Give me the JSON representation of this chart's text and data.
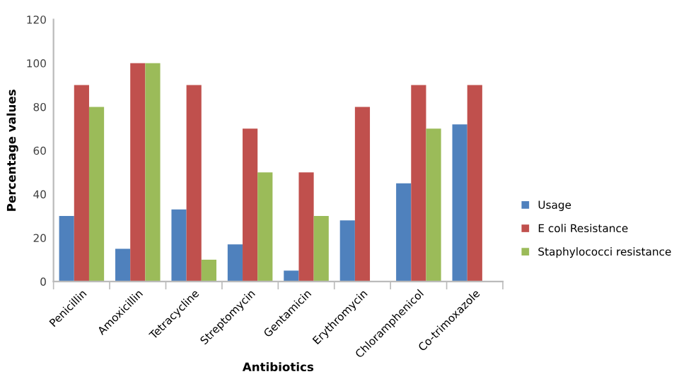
{
  "chart_data": {
    "type": "bar",
    "xlabel": "Antibiotics",
    "ylabel": "Percentage values",
    "categories": [
      "Penicillin",
      "Amoxicillin",
      "Tetracycline",
      "Streptomycin",
      "Gentamicin",
      "Erythromycin",
      "Chloramphenicol",
      "Co-trimoxazole"
    ],
    "series": [
      {
        "name": "Usage",
        "color": "#4f81bd",
        "values": [
          30,
          15,
          33,
          17,
          5,
          28,
          45,
          72
        ]
      },
      {
        "name": "E coli Resistance",
        "color": "#c0504d",
        "values": [
          90,
          100,
          90,
          70,
          50,
          80,
          90,
          90
        ]
      },
      {
        "name": "Staphylococci resistance",
        "color": "#9bbb59",
        "values": [
          80,
          100,
          10,
          50,
          30,
          null,
          70,
          null
        ]
      }
    ],
    "ylim": [
      0,
      120
    ],
    "yticks": [
      0,
      20,
      40,
      60,
      80,
      100,
      120
    ],
    "grid": false,
    "legend": "right"
  }
}
